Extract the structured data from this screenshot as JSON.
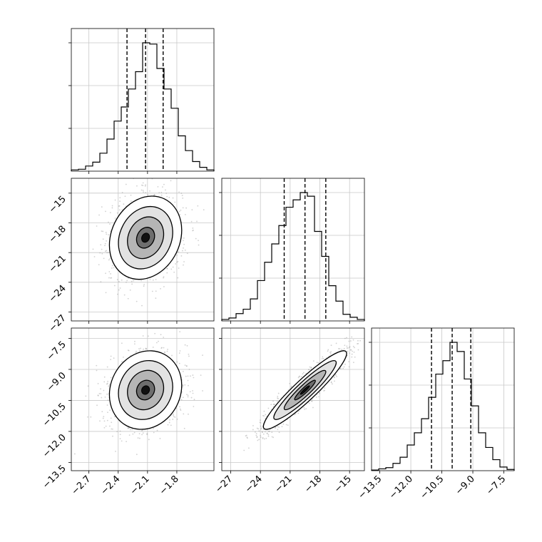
{
  "chart_data": {
    "type": "corner",
    "parameters": [
      {
        "ticks": [
          -2.7,
          -2.4,
          -2.1,
          -1.8
        ],
        "tick_labels": [
          "−2.7",
          "−2.4",
          "−2.1",
          "−1.8"
        ],
        "range": [
          -2.88,
          -1.42
        ],
        "quantiles": [
          -2.31,
          -2.12,
          -1.94
        ]
      },
      {
        "ticks": [
          -27,
          -24,
          -21,
          -18,
          -15
        ],
        "tick_labels": [
          "−27",
          "−24",
          "−21",
          "−18",
          "−15"
        ],
        "range": [
          -27.9,
          -13.5
        ],
        "quantiles": [
          -21.6,
          -19.5,
          -17.4
        ]
      },
      {
        "ticks": [
          -13.5,
          -12.0,
          -10.5,
          -9.0,
          -7.5
        ],
        "tick_labels": [
          "−13.5",
          "−12.0",
          "−10.5",
          "−9.0",
          "−7.5"
        ],
        "range": [
          -13.9,
          -7.0
        ],
        "quantiles": [
          -11.0,
          -10.0,
          -9.1
        ]
      }
    ],
    "histograms": [
      {
        "param": 0,
        "bin_edges": [
          -2.88,
          -2.807,
          -2.734,
          -2.661,
          -2.588,
          -2.515,
          -2.442,
          -2.369,
          -2.296,
          -2.223,
          -2.15,
          -2.077,
          -2.004,
          -1.931,
          -1.858,
          -1.785,
          -1.712,
          -1.639,
          -1.566,
          -1.493,
          -1.42
        ],
        "counts": [
          2,
          3,
          8,
          14,
          28,
          50,
          78,
          100,
          128,
          155,
          200,
          198,
          160,
          128,
          98,
          55,
          32,
          15,
          6,
          2
        ]
      },
      {
        "param": 1,
        "bin_edges": [
          -27.9,
          -27.18,
          -26.46,
          -25.74,
          -25.02,
          -24.3,
          -23.58,
          -22.86,
          -22.14,
          -21.42,
          -20.7,
          -19.98,
          -19.26,
          -18.54,
          -17.82,
          -17.1,
          -16.38,
          -15.66,
          -14.94,
          -14.22,
          -13.5
        ],
        "counts": [
          2,
          4,
          10,
          16,
          30,
          55,
          80,
          105,
          130,
          155,
          165,
          175,
          170,
          122,
          88,
          48,
          27,
          9,
          5,
          2
        ]
      },
      {
        "param": 2,
        "bin_edges": [
          -13.9,
          -13.555,
          -13.21,
          -12.865,
          -12.52,
          -12.175,
          -11.83,
          -11.485,
          -11.14,
          -10.795,
          -10.45,
          -10.105,
          -9.76,
          -9.415,
          -9.07,
          -8.725,
          -8.38,
          -8.035,
          -7.69,
          -7.345,
          -7.0
        ],
        "counts": [
          1,
          3,
          5,
          12,
          22,
          42,
          62,
          85,
          120,
          158,
          180,
          210,
          195,
          150,
          106,
          62,
          38,
          18,
          6,
          2
        ]
      }
    ],
    "scatter_panels": [
      {
        "x_param": 0,
        "y_param": 1,
        "correlation": 0.18
      },
      {
        "x_param": 0,
        "y_param": 2,
        "correlation": 0.12
      },
      {
        "x_param": 1,
        "y_param": 2,
        "correlation": 0.93
      }
    ],
    "grid": true,
    "quantile_line_style": "dashed",
    "contour_color": "#000000",
    "density_cmap": "greys",
    "sample_color": "#9a9a9a"
  }
}
